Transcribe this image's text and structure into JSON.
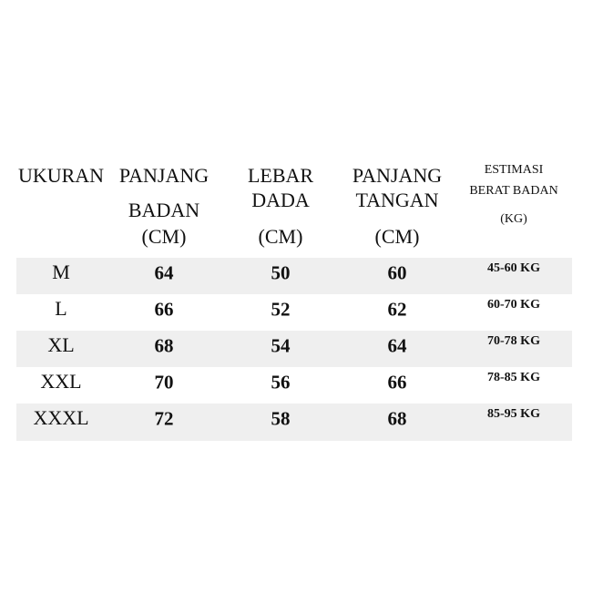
{
  "header": {
    "ukuran": "UKURAN",
    "panjang_badan": [
      "PANJANG",
      "BADAN",
      "(CM)"
    ],
    "lebar_dada": [
      "LEBAR",
      "DADA",
      "(CM)"
    ],
    "panjang_tangan": [
      "PANJANG",
      "TANGAN",
      "(CM)"
    ],
    "estimasi": [
      "ESTIMASI",
      "BERAT BADAN",
      "(KG)"
    ]
  },
  "rows": [
    {
      "size": "M",
      "badan": "64",
      "dada": "50",
      "tangan": "60",
      "berat": "45-60 KG"
    },
    {
      "size": "L",
      "badan": "66",
      "dada": "52",
      "tangan": "62",
      "berat": "60-70 KG"
    },
    {
      "size": "XL",
      "badan": "68",
      "dada": "54",
      "tangan": "64",
      "berat": "70-78 KG"
    },
    {
      "size": "XXL",
      "badan": "70",
      "dada": "56",
      "tangan": "66",
      "berat": "78-85 KG"
    },
    {
      "size": "XXXL",
      "badan": "72",
      "dada": "58",
      "tangan": "68",
      "berat": "85-95 KG"
    }
  ],
  "colors": {
    "row_shade": "#efefef",
    "text": "#111111"
  }
}
